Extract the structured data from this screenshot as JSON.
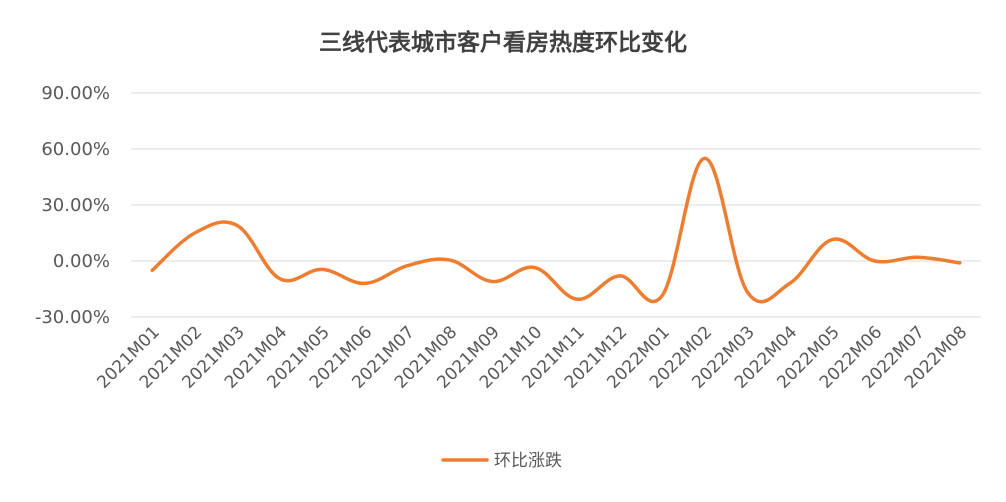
{
  "chart_data": {
    "type": "line",
    "title": "三线代表城市客户看房热度环比变化",
    "categories": [
      "2021M01",
      "2021M02",
      "2021M03",
      "2021M04",
      "2021M05",
      "2021M06",
      "2021M07",
      "2021M08",
      "2021M09",
      "2021M10",
      "2021M11",
      "2021M12",
      "2022M01",
      "2022M02",
      "2022M03",
      "2022M04",
      "2022M05",
      "2022M06",
      "2022M07",
      "2022M08"
    ],
    "series": [
      {
        "name": "环比涨跌",
        "color": "#ed7d31",
        "values": [
          -5.0,
          15.0,
          19.0,
          -9.5,
          -4.5,
          -12.0,
          -2.5,
          0.5,
          -11.0,
          -3.5,
          -20.5,
          -8.0,
          -18.5,
          55.0,
          -16.5,
          -12.0,
          11.5,
          0.0,
          2.0,
          -1.0
        ]
      }
    ],
    "y_ticks": [
      "90.00%",
      "60.00%",
      "30.00%",
      "0.00%",
      "-30.00%"
    ],
    "y_tick_values": [
      90,
      60,
      30,
      0,
      -30
    ],
    "ylim": [
      -30,
      90
    ],
    "grid": true,
    "legend_position": "bottom"
  }
}
